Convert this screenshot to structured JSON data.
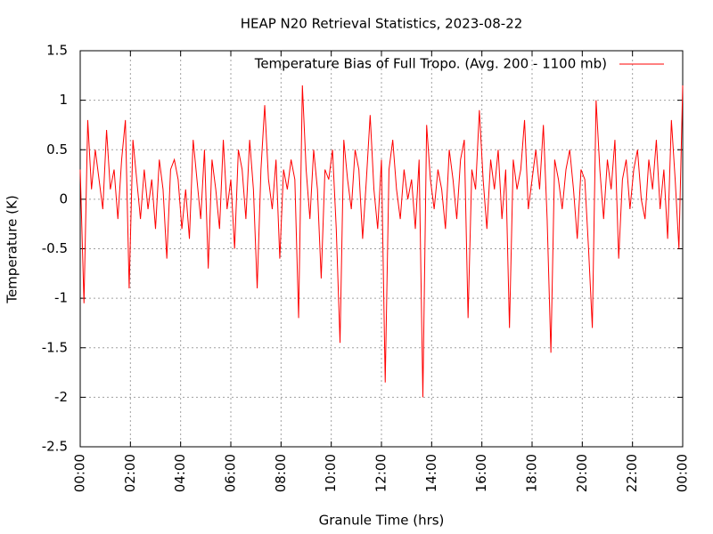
{
  "chart_data": {
    "type": "line",
    "title": "HEAP N20 Retrieval Statistics, 2023-08-22",
    "x_label": "Granule Time (hrs)",
    "y_label": "Temperature (K)",
    "grid": true,
    "legend": "top-right",
    "xlim": [
      0,
      24
    ],
    "ylim": [
      -2.5,
      1.5
    ],
    "yticks": [
      -2.5,
      -2,
      -1.5,
      -1,
      -0.5,
      0,
      0.5,
      1,
      1.5
    ],
    "xticks": [
      {
        "value": 0,
        "label": "00:00"
      },
      {
        "value": 2,
        "label": "02:00"
      },
      {
        "value": 4,
        "label": "04:00"
      },
      {
        "value": 6,
        "label": "06:00"
      },
      {
        "value": 8,
        "label": "08:00"
      },
      {
        "value": 10,
        "label": "10:00"
      },
      {
        "value": 12,
        "label": "12:00"
      },
      {
        "value": 14,
        "label": "14:00"
      },
      {
        "value": 16,
        "label": "16:00"
      },
      {
        "value": 18,
        "label": "18:00"
      },
      {
        "value": 20,
        "label": "20:00"
      },
      {
        "value": 22,
        "label": "22:00"
      },
      {
        "value": 24,
        "label": "00:00"
      }
    ],
    "x": [
      0,
      0.15,
      0.3,
      0.45,
      0.6,
      0.75,
      0.9,
      1.05,
      1.2,
      1.35,
      1.5,
      1.65,
      1.8,
      1.95,
      2.1,
      2.25,
      2.4,
      2.55,
      2.7,
      2.85,
      3,
      3.15,
      3.3,
      3.45,
      3.6,
      3.75,
      3.9,
      4.05,
      4.2,
      4.35,
      4.5,
      4.65,
      4.8,
      4.95,
      5.1,
      5.25,
      5.4,
      5.55,
      5.7,
      5.85,
      6,
      6.15,
      6.3,
      6.45,
      6.6,
      6.75,
      6.9,
      7.05,
      7.2,
      7.35,
      7.5,
      7.65,
      7.8,
      7.95,
      8.1,
      8.25,
      8.4,
      8.55,
      8.7,
      8.85,
      9,
      9.15,
      9.3,
      9.45,
      9.6,
      9.75,
      9.9,
      10.05,
      10.2,
      10.35,
      10.5,
      10.65,
      10.8,
      10.95,
      11.1,
      11.25,
      11.4,
      11.55,
      11.7,
      11.85,
      12,
      12.15,
      12.3,
      12.45,
      12.6,
      12.75,
      12.9,
      13.05,
      13.2,
      13.35,
      13.5,
      13.65,
      13.8,
      13.95,
      14.1,
      14.25,
      14.4,
      14.55,
      14.7,
      14.85,
      15,
      15.15,
      15.3,
      15.45,
      15.6,
      15.75,
      15.9,
      16.05,
      16.2,
      16.35,
      16.5,
      16.65,
      16.8,
      16.95,
      17.1,
      17.25,
      17.4,
      17.55,
      17.7,
      17.85,
      18,
      18.15,
      18.3,
      18.45,
      18.6,
      18.75,
      18.9,
      19.05,
      19.2,
      19.35,
      19.5,
      19.65,
      19.8,
      19.95,
      20.1,
      20.25,
      20.4,
      20.55,
      20.7,
      20.85,
      21,
      21.15,
      21.3,
      21.45,
      21.6,
      21.75,
      21.9,
      22.05,
      22.2,
      22.35,
      22.5,
      22.65,
      22.8,
      22.95,
      23.1,
      23.25,
      23.4,
      23.55,
      23.7,
      23.85,
      24
    ],
    "series": [
      {
        "name": "Temperature Bias of Full Tropo. (Avg. 200 - 1100 mb)",
        "color": "#ff0000",
        "values": [
          0.3,
          -1.05,
          0.8,
          0.1,
          0.5,
          0.2,
          -0.1,
          0.7,
          0.1,
          0.3,
          -0.2,
          0.4,
          0.8,
          -0.9,
          0.6,
          0.2,
          -0.2,
          0.3,
          -0.1,
          0.2,
          -0.3,
          0.4,
          0.1,
          -0.6,
          0.3,
          0.4,
          0.2,
          -0.3,
          0.1,
          -0.4,
          0.6,
          0.2,
          -0.2,
          0.5,
          -0.7,
          0.4,
          0.1,
          -0.3,
          0.6,
          -0.1,
          0.2,
          -0.5,
          0.5,
          0.3,
          -0.2,
          0.6,
          0.1,
          -0.9,
          0.3,
          0.95,
          0.2,
          -0.1,
          0.4,
          -0.6,
          0.3,
          0.1,
          0.4,
          0.2,
          -1.2,
          1.15,
          0.3,
          -0.2,
          0.5,
          0.1,
          -0.8,
          0.3,
          0.2,
          0.5,
          -0.3,
          -1.45,
          0.6,
          0.2,
          -0.1,
          0.5,
          0.3,
          -0.4,
          0.2,
          0.85,
          0.1,
          -0.3,
          0.4,
          -1.85,
          0.3,
          0.6,
          0.1,
          -0.2,
          0.3,
          0.0,
          0.2,
          -0.3,
          0.4,
          -2.0,
          0.75,
          0.2,
          -0.1,
          0.3,
          0.1,
          -0.3,
          0.5,
          0.2,
          -0.2,
          0.4,
          0.6,
          -1.2,
          0.3,
          0.1,
          0.9,
          0.2,
          -0.3,
          0.4,
          0.1,
          0.5,
          -0.2,
          0.3,
          -1.3,
          0.4,
          0.1,
          0.3,
          0.8,
          -0.1,
          0.2,
          0.5,
          0.1,
          0.75,
          -0.2,
          -1.55,
          0.4,
          0.2,
          -0.1,
          0.3,
          0.5,
          0.1,
          -0.4,
          0.3,
          0.2,
          -0.5,
          -1.3,
          1.0,
          0.3,
          -0.2,
          0.4,
          0.1,
          0.6,
          -0.6,
          0.2,
          0.4,
          -0.1,
          0.3,
          0.5,
          0.0,
          -0.2,
          0.4,
          0.1,
          0.6,
          -0.1,
          0.3,
          -0.4,
          0.8,
          0.2,
          -0.5,
          1.15
        ]
      }
    ]
  }
}
